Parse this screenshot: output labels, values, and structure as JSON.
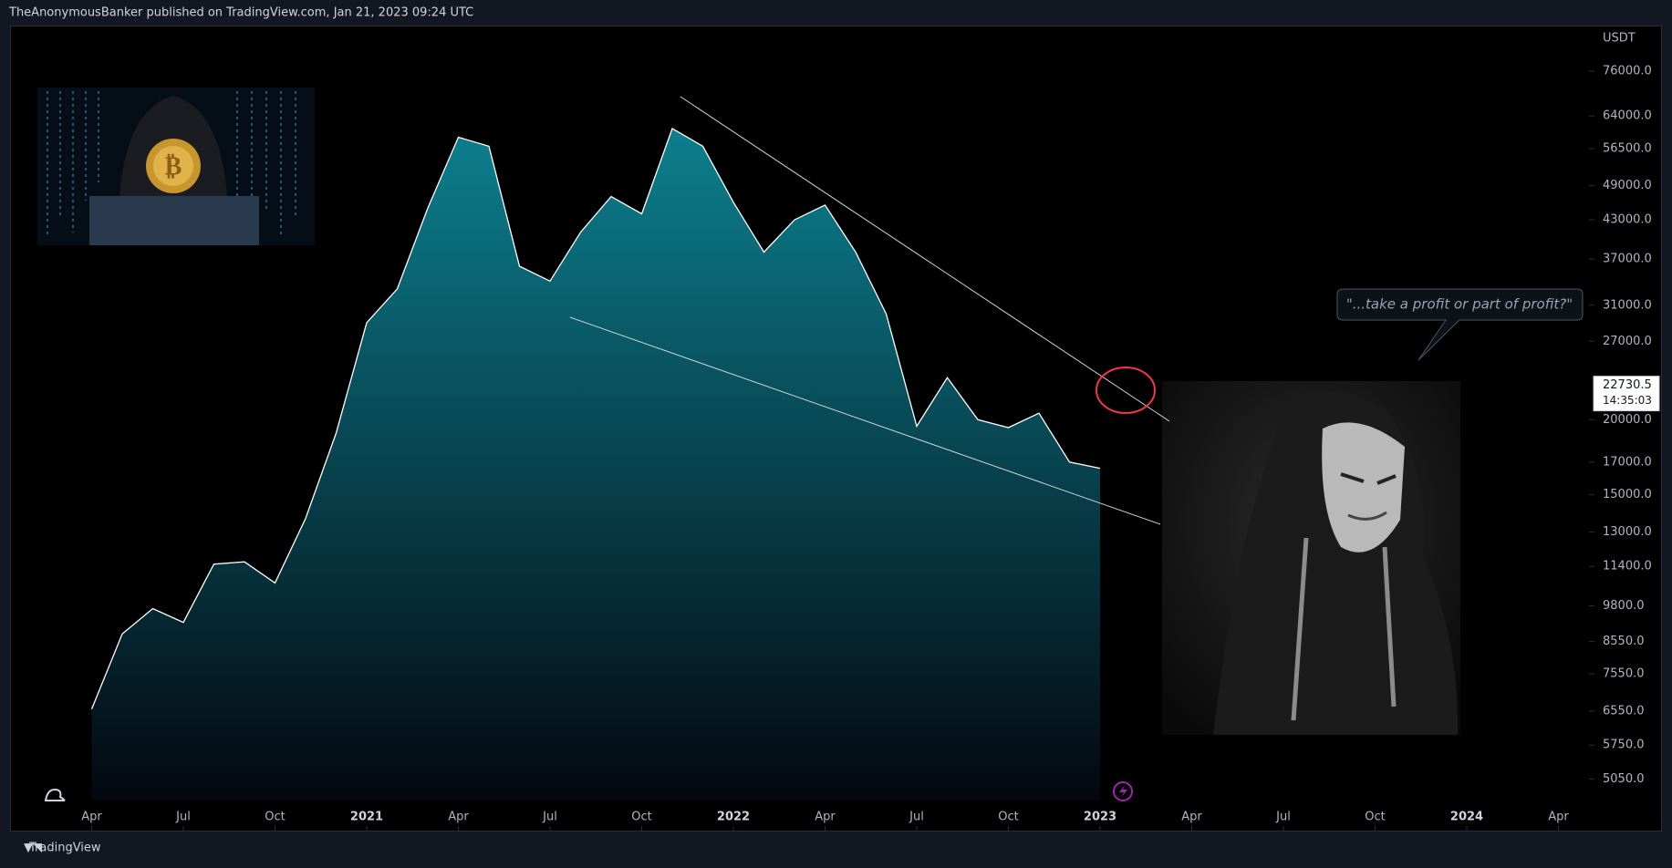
{
  "header": {
    "text": "TheAnonymousBanker published on TradingView.com, Jan 21, 2023 09:24 UTC"
  },
  "footer": {
    "brand": "TradingView"
  },
  "chart_data": {
    "type": "area",
    "currency": "USDT",
    "line_color": "#ffffff",
    "fill_top": "#0c7f8e",
    "fill_bottom": "#03070f",
    "yscale": "log",
    "grid": false,
    "x": [
      "2020-04",
      "2020-05",
      "2020-06",
      "2020-07",
      "2020-08",
      "2020-09",
      "2020-10",
      "2020-11",
      "2020-12",
      "2021-01",
      "2021-02",
      "2021-03",
      "2021-04",
      "2021-05",
      "2021-06",
      "2021-07",
      "2021-08",
      "2021-09",
      "2021-10",
      "2021-11",
      "2021-12",
      "2022-01",
      "2022-02",
      "2022-03",
      "2022-04",
      "2022-05",
      "2022-06",
      "2022-07",
      "2022-08",
      "2022-09",
      "2022-10",
      "2022-11",
      "2022-12",
      "2023-01"
    ],
    "values": [
      6600,
      8800,
      9700,
      9200,
      11500,
      11600,
      10700,
      13700,
      19000,
      29000,
      33000,
      45000,
      59000,
      57000,
      36000,
      34000,
      41000,
      47000,
      44000,
      61000,
      57000,
      46000,
      38000,
      43000,
      45500,
      38000,
      30000,
      19500,
      23500,
      20000,
      19400,
      20500,
      17000,
      16600
    ],
    "xlim": [
      "2020-01",
      "2024-05"
    ],
    "xticks": [
      {
        "value": "2020-04",
        "label": "Apr"
      },
      {
        "value": "2020-07",
        "label": "Jul"
      },
      {
        "value": "2020-10",
        "label": "Oct"
      },
      {
        "value": "2021-01",
        "label": "2021"
      },
      {
        "value": "2021-04",
        "label": "Apr"
      },
      {
        "value": "2021-07",
        "label": "Jul"
      },
      {
        "value": "2021-10",
        "label": "Oct"
      },
      {
        "value": "2022-01",
        "label": "2022"
      },
      {
        "value": "2022-04",
        "label": "Apr"
      },
      {
        "value": "2022-07",
        "label": "Jul"
      },
      {
        "value": "2022-10",
        "label": "Oct"
      },
      {
        "value": "2023-01",
        "label": "2023"
      },
      {
        "value": "2023-04",
        "label": "Apr"
      },
      {
        "value": "2023-07",
        "label": "Jul"
      },
      {
        "value": "2023-10",
        "label": "Oct"
      },
      {
        "value": "2024-01",
        "label": "2024"
      },
      {
        "value": "2024-04",
        "label": "Apr"
      }
    ],
    "ylim": [
      4650,
      90500
    ],
    "yticks": [
      {
        "value": 5050,
        "label": "5050.0"
      },
      {
        "value": 5750,
        "label": "5750.0"
      },
      {
        "value": 6550,
        "label": "6550.0"
      },
      {
        "value": 7550,
        "label": "7550.0"
      },
      {
        "value": 8550,
        "label": "8550.0"
      },
      {
        "value": 9800,
        "label": "9800.0"
      },
      {
        "value": 11400,
        "label": "11400.0"
      },
      {
        "value": 13000,
        "label": "13000.0"
      },
      {
        "value": 15000,
        "label": "15000.0"
      },
      {
        "value": 17000,
        "label": "17000.0"
      },
      {
        "value": 20000,
        "label": "20000.0"
      },
      {
        "value": 27000,
        "label": "27000.0"
      },
      {
        "value": 31000,
        "label": "31000.0"
      },
      {
        "value": 37000,
        "label": "37000.0"
      },
      {
        "value": 43000,
        "label": "43000.0"
      },
      {
        "value": 49000,
        "label": "49000.0"
      },
      {
        "value": 56500,
        "label": "56500.0"
      },
      {
        "value": 64000,
        "label": "64000.0"
      },
      {
        "value": 76000,
        "label": "76000.0"
      }
    ],
    "last_price": {
      "value": 22730.5,
      "countdown": "14:35:03"
    },
    "callout": "\"...take a profit or part of profit?\""
  }
}
